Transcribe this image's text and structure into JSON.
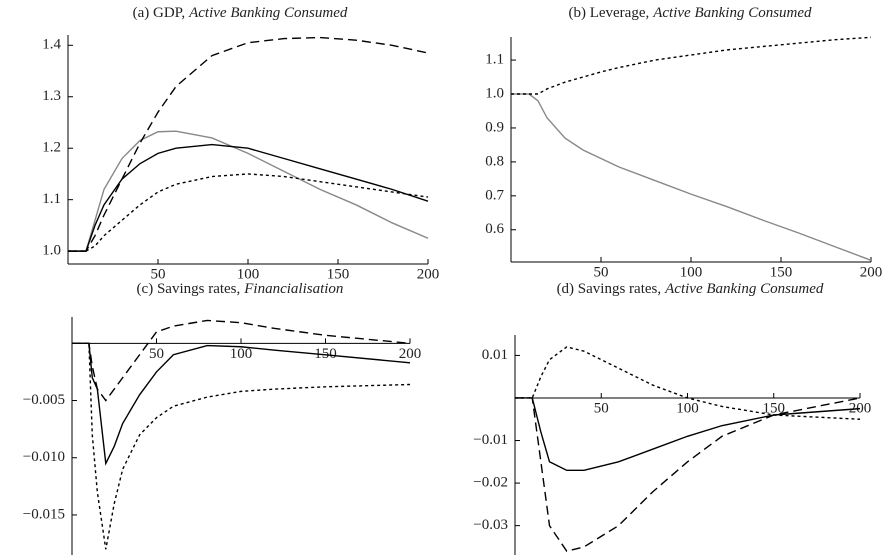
{
  "chart_data": [
    {
      "type": "line",
      "title": [
        "(a) GDP,",
        "Active Banking Consumed"
      ],
      "x": [
        0,
        10,
        15,
        20,
        30,
        40,
        50,
        60,
        80,
        100,
        120,
        140,
        160,
        180,
        200
      ],
      "xlim": [
        0,
        200
      ],
      "xticks": [
        50,
        100,
        150,
        200
      ],
      "ylim": [
        0.975,
        1.42
      ],
      "yticks": [
        {
          "value": 1.0,
          "label": "1.0"
        },
        1.1,
        1.2,
        1.3,
        1.4
      ],
      "series": [
        {
          "color": "#888888",
          "style": "solid",
          "values": [
            1,
            1,
            1.06,
            1.12,
            1.18,
            1.215,
            1.232,
            1.233,
            1.22,
            1.19,
            1.155,
            1.12,
            1.09,
            1.055,
            1.025
          ]
        },
        {
          "color": "#000000",
          "style": "solid",
          "values": [
            1,
            1,
            1.05,
            1.09,
            1.14,
            1.17,
            1.19,
            1.2,
            1.207,
            1.2,
            1.18,
            1.16,
            1.14,
            1.12,
            1.097
          ]
        },
        {
          "color": "#000000",
          "style": "dashed",
          "values": [
            1,
            1,
            1.03,
            1.07,
            1.14,
            1.21,
            1.27,
            1.32,
            1.38,
            1.405,
            1.413,
            1.415,
            1.41,
            1.4,
            1.385
          ]
        },
        {
          "color": "#000000",
          "style": "dotted",
          "values": [
            1,
            1,
            1.01,
            1.03,
            1.06,
            1.09,
            1.115,
            1.13,
            1.145,
            1.15,
            1.145,
            1.135,
            1.125,
            1.115,
            1.105
          ]
        }
      ]
    },
    {
      "type": "line",
      "title": [
        "(b) Leverage,",
        "Active Banking Consumed"
      ],
      "x": [
        0,
        10,
        15,
        20,
        30,
        40,
        50,
        60,
        80,
        100,
        120,
        140,
        160,
        180,
        200
      ],
      "xlim": [
        0,
        200
      ],
      "xticks": [
        50,
        100,
        150,
        200
      ],
      "ylim": [
        0.505,
        1.168
      ],
      "yticks": [
        0.6,
        0.7,
        0.8,
        0.9,
        {
          "value": 1.0,
          "label": "1.0"
        },
        1.1
      ],
      "series": [
        {
          "color": "#888888",
          "style": "solid",
          "values": [
            1,
            1,
            0.98,
            0.93,
            0.87,
            0.835,
            0.81,
            0.785,
            0.745,
            0.705,
            0.668,
            0.628,
            0.59,
            0.55,
            0.51
          ]
        },
        {
          "color": "#000000",
          "style": "dotted",
          "values": [
            1,
            1,
            1,
            1.015,
            1.035,
            1.05,
            1.065,
            1.078,
            1.1,
            1.115,
            1.13,
            1.14,
            1.15,
            1.16,
            1.167
          ]
        }
      ]
    },
    {
      "type": "line",
      "title": [
        "(c) Savings rates,",
        "Financialisation"
      ],
      "x": [
        0,
        10,
        12,
        15,
        20,
        25,
        30,
        40,
        50,
        60,
        80,
        100,
        120,
        150,
        200
      ],
      "xlim": [
        0,
        200
      ],
      "xticks": [
        50,
        100,
        150,
        200
      ],
      "ylim": [
        -0.0185,
        0.0023
      ],
      "yticks": [
        {
          "value": -0.015,
          "label": "−0.015"
        },
        {
          "value": -0.01,
          "label": "−0.010"
        },
        {
          "value": -0.005,
          "label": "−0.005"
        }
      ],
      "series": [
        {
          "color": "#000000",
          "style": "solid",
          "values": [
            0,
            0,
            -0.003,
            -0.004,
            -0.0105,
            -0.009,
            -0.007,
            -0.0045,
            -0.0025,
            -0.001,
            -0.0002,
            -0.0003,
            -0.0006,
            -0.001,
            -0.0017
          ]
        },
        {
          "color": "#000000",
          "style": "dashed",
          "values": [
            0,
            0,
            -0.002,
            -0.004,
            -0.005,
            -0.004,
            -0.003,
            -0.001,
            0.001,
            0.0015,
            0.002,
            0.0018,
            0.0013,
            0.0007,
            0
          ]
        },
        {
          "color": "#000000",
          "style": "dotted",
          "values": [
            0,
            0,
            -0.008,
            -0.013,
            -0.018,
            -0.014,
            -0.011,
            -0.008,
            -0.0065,
            -0.0055,
            -0.0047,
            -0.0042,
            -0.004,
            -0.0038,
            -0.0036
          ]
        }
      ]
    },
    {
      "type": "line",
      "title": [
        "(d) Savings rates,",
        "Active Banking Consumed"
      ],
      "x": [
        0,
        10,
        15,
        20,
        30,
        40,
        60,
        80,
        100,
        120,
        150,
        200
      ],
      "xlim": [
        0,
        200
      ],
      "xticks": [
        50,
        100,
        150,
        200
      ],
      "ylim": [
        -0.0369,
        0.0148
      ],
      "yticks": [
        {
          "value": -0.03,
          "label": "−0.03"
        },
        {
          "value": -0.02,
          "label": "−0.02"
        },
        {
          "value": -0.01,
          "label": "−0.01"
        },
        0.01
      ],
      "series": [
        {
          "color": "#000000",
          "style": "solid",
          "values": [
            0,
            0,
            -0.008,
            -0.015,
            -0.017,
            -0.017,
            -0.015,
            -0.012,
            -0.009,
            -0.0065,
            -0.004,
            -0.0025
          ]
        },
        {
          "color": "#000000",
          "style": "dashed",
          "values": [
            0,
            0,
            -0.015,
            -0.03,
            -0.036,
            -0.035,
            -0.03,
            -0.022,
            -0.015,
            -0.009,
            -0.004,
            0
          ]
        },
        {
          "color": "#000000",
          "style": "dotted",
          "values": [
            0,
            0,
            0.005,
            0.009,
            0.012,
            0.011,
            0.007,
            0.003,
            0,
            -0.002,
            -0.004,
            -0.005
          ]
        }
      ]
    }
  ]
}
